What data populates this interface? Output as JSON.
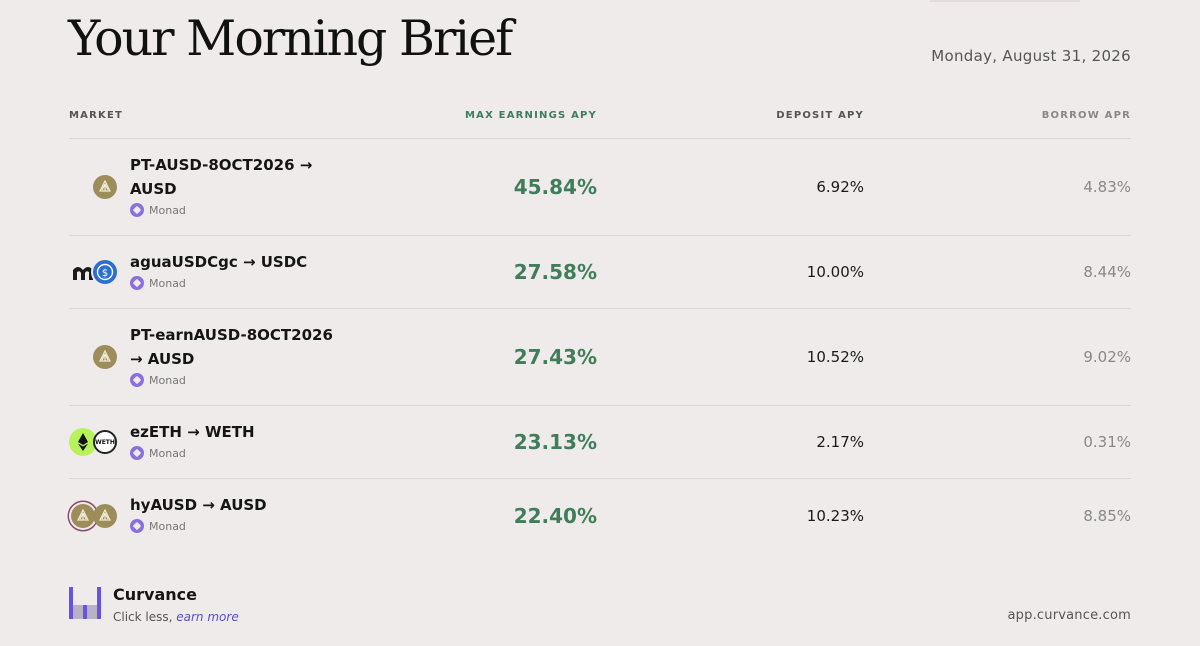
{
  "header": {
    "title": "Your Morning Brief",
    "date": "Monday, August 31, 2026"
  },
  "table": {
    "columns": {
      "market": "MARKET",
      "max_earnings_apy": "MAX EARNINGS APY",
      "deposit_apy": "DEPOSIT APY",
      "borrow_apr": "BORROW APR"
    },
    "rows": [
      {
        "market_line1": "PT-AUSD-8OCT2026 →",
        "market_line2": "AUSD",
        "network": "Monad",
        "max_earnings_apy": "45.84%",
        "deposit_apy": "6.92%",
        "borrow_apr": "4.83%",
        "icons": [
          "agora-icon"
        ]
      },
      {
        "market_line1": "aguaUSDCgc → USDC",
        "market_line2": "",
        "network": "Monad",
        "max_earnings_apy": "27.58%",
        "deposit_apy": "10.00%",
        "borrow_apr": "8.44%",
        "icons": [
          "morpho-icon",
          "usdc-icon"
        ]
      },
      {
        "market_line1": "PT-earnAUSD-8OCT2026",
        "market_line2": "→ AUSD",
        "network": "Monad",
        "max_earnings_apy": "27.43%",
        "deposit_apy": "10.52%",
        "borrow_apr": "9.02%",
        "icons": [
          "agora-icon"
        ]
      },
      {
        "market_line1": "ezETH → WETH",
        "market_line2": "",
        "network": "Monad",
        "max_earnings_apy": "23.13%",
        "deposit_apy": "2.17%",
        "borrow_apr": "0.31%",
        "icons": [
          "ezeth-icon",
          "weth-icon"
        ],
        "weth_label": "WETH"
      },
      {
        "market_line1": "hyAUSD → AUSD",
        "market_line2": "",
        "network": "Monad",
        "max_earnings_apy": "22.40%",
        "deposit_apy": "10.23%",
        "borrow_apr": "8.85%",
        "icons": [
          "hyausd-icon",
          "agora-icon"
        ]
      }
    ]
  },
  "footer": {
    "brand": "Curvance",
    "tagline_prefix": "Click less, ",
    "tagline_emphasis": "earn more",
    "url": "app.curvance.com"
  },
  "colors": {
    "background": "#efebea",
    "accent_green": "#3f7d5b",
    "accent_purple": "#5b4fc8",
    "agora_gold": "#9d8d5b",
    "usdc_blue": "#2c6fd1",
    "eth_lime": "#b8f25a"
  }
}
